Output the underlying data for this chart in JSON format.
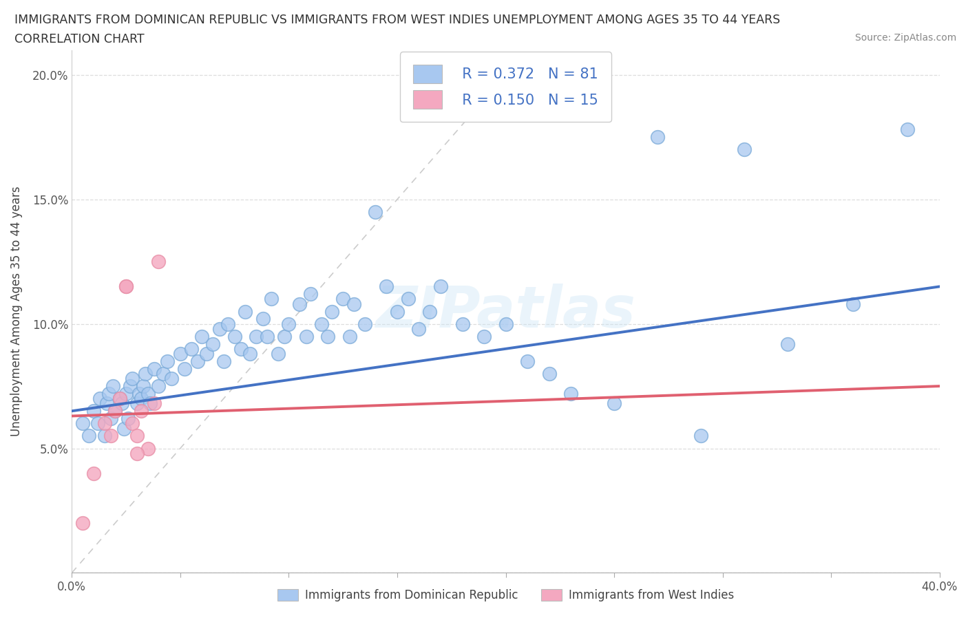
{
  "title_line1": "IMMIGRANTS FROM DOMINICAN REPUBLIC VS IMMIGRANTS FROM WEST INDIES UNEMPLOYMENT AMONG AGES 35 TO 44 YEARS",
  "title_line2": "CORRELATION CHART",
  "source_text": "Source: ZipAtlas.com",
  "ylabel": "Unemployment Among Ages 35 to 44 years",
  "xlim": [
    0.0,
    0.4
  ],
  "ylim": [
    0.0,
    0.21
  ],
  "legend_r1": "R = 0.372",
  "legend_n1": "N = 81",
  "legend_r2": "R = 0.150",
  "legend_n2": "N = 15",
  "color_blue": "#a8c8f0",
  "color_pink": "#f4a8c0",
  "edge_blue": "#7aaad8",
  "edge_pink": "#e890a8",
  "trendline_blue": "#4472c4",
  "trendline_pink": "#e06070",
  "watermark": "ZIPatlas",
  "series1_label": "Immigrants from Dominican Republic",
  "series2_label": "Immigrants from West Indies",
  "legend_text_color": "#4472c4",
  "blue_x": [
    0.005,
    0.008,
    0.01,
    0.012,
    0.013,
    0.015,
    0.016,
    0.017,
    0.018,
    0.019,
    0.02,
    0.022,
    0.023,
    0.024,
    0.025,
    0.026,
    0.027,
    0.028,
    0.03,
    0.031,
    0.032,
    0.033,
    0.034,
    0.035,
    0.036,
    0.038,
    0.04,
    0.042,
    0.044,
    0.046,
    0.05,
    0.052,
    0.055,
    0.058,
    0.06,
    0.062,
    0.065,
    0.068,
    0.07,
    0.072,
    0.075,
    0.078,
    0.08,
    0.082,
    0.085,
    0.088,
    0.09,
    0.092,
    0.095,
    0.098,
    0.1,
    0.105,
    0.108,
    0.11,
    0.115,
    0.118,
    0.12,
    0.125,
    0.128,
    0.13,
    0.135,
    0.14,
    0.145,
    0.15,
    0.155,
    0.16,
    0.165,
    0.17,
    0.18,
    0.19,
    0.2,
    0.21,
    0.22,
    0.23,
    0.25,
    0.27,
    0.29,
    0.31,
    0.33,
    0.36,
    0.385
  ],
  "blue_y": [
    0.06,
    0.055,
    0.065,
    0.06,
    0.07,
    0.055,
    0.068,
    0.072,
    0.062,
    0.075,
    0.065,
    0.07,
    0.068,
    0.058,
    0.072,
    0.062,
    0.075,
    0.078,
    0.068,
    0.072,
    0.07,
    0.075,
    0.08,
    0.072,
    0.068,
    0.082,
    0.075,
    0.08,
    0.085,
    0.078,
    0.088,
    0.082,
    0.09,
    0.085,
    0.095,
    0.088,
    0.092,
    0.098,
    0.085,
    0.1,
    0.095,
    0.09,
    0.105,
    0.088,
    0.095,
    0.102,
    0.095,
    0.11,
    0.088,
    0.095,
    0.1,
    0.108,
    0.095,
    0.112,
    0.1,
    0.095,
    0.105,
    0.11,
    0.095,
    0.108,
    0.1,
    0.145,
    0.115,
    0.105,
    0.11,
    0.098,
    0.105,
    0.115,
    0.1,
    0.095,
    0.1,
    0.085,
    0.08,
    0.072,
    0.068,
    0.175,
    0.055,
    0.17,
    0.092,
    0.108,
    0.178
  ],
  "pink_x": [
    0.005,
    0.01,
    0.015,
    0.018,
    0.02,
    0.022,
    0.025,
    0.028,
    0.03,
    0.032,
    0.035,
    0.038,
    0.04,
    0.025,
    0.03
  ],
  "pink_y": [
    0.02,
    0.04,
    0.06,
    0.055,
    0.065,
    0.07,
    0.115,
    0.06,
    0.055,
    0.065,
    0.05,
    0.068,
    0.125,
    0.115,
    0.048
  ]
}
